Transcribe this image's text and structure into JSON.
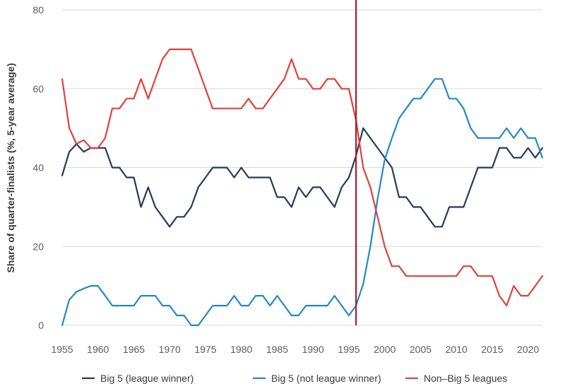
{
  "chart_data": {
    "type": "line",
    "ylabel": "Share of quarter-finalists (%, 5-year average)",
    "xlabel": "",
    "ylim": [
      0,
      80
    ],
    "xlim": [
      1955,
      2022
    ],
    "y_ticks": [
      0,
      20,
      40,
      60,
      80
    ],
    "x_ticks": [
      1955,
      1960,
      1965,
      1970,
      1975,
      1980,
      1985,
      1990,
      1995,
      2000,
      2005,
      2010,
      2015,
      2020
    ],
    "grid": "horizontal",
    "legend_position": "bottom",
    "reference_line": {
      "x": 1996,
      "color": "#b01c2e"
    },
    "x": [
      1955,
      1956,
      1957,
      1958,
      1959,
      1960,
      1961,
      1962,
      1963,
      1964,
      1965,
      1966,
      1967,
      1968,
      1969,
      1970,
      1971,
      1972,
      1973,
      1974,
      1975,
      1976,
      1977,
      1978,
      1979,
      1980,
      1981,
      1982,
      1983,
      1984,
      1985,
      1986,
      1987,
      1988,
      1989,
      1990,
      1991,
      1992,
      1993,
      1994,
      1995,
      1996,
      1997,
      1998,
      1999,
      2000,
      2001,
      2002,
      2003,
      2004,
      2005,
      2006,
      2007,
      2008,
      2009,
      2010,
      2011,
      2012,
      2013,
      2014,
      2015,
      2016,
      2017,
      2018,
      2019,
      2020,
      2021,
      2022
    ],
    "series": [
      {
        "name": "Big 5 (league winner)",
        "color": "#243a5a",
        "values": [
          38,
          44,
          46,
          44,
          45,
          45,
          45,
          40,
          40,
          37.5,
          37.5,
          30,
          35,
          30,
          27.5,
          25,
          27.5,
          27.5,
          30,
          35,
          37.5,
          40,
          40,
          40,
          37.5,
          40,
          37.5,
          37.5,
          37.5,
          37.5,
          32.5,
          32.5,
          30,
          35,
          32.5,
          35,
          35,
          32.5,
          30,
          35,
          37.5,
          43,
          50,
          47.5,
          45,
          42.5,
          40,
          32.5,
          32.5,
          30,
          30,
          27.5,
          25,
          25,
          30,
          30,
          30,
          35,
          40,
          40,
          40,
          45,
          45,
          42.5,
          42.5,
          45,
          42.5,
          45
        ]
      },
      {
        "name": "Big 5 (not league winner)",
        "color": "#1f8ac4",
        "values": [
          0,
          6.5,
          8.5,
          9.3,
          10,
          10,
          7.5,
          5,
          5,
          5,
          5,
          7.5,
          7.5,
          7.5,
          5,
          5,
          2.5,
          2.5,
          0,
          0,
          2.5,
          5,
          5,
          5,
          7.5,
          5,
          5,
          7.5,
          7.5,
          5,
          7.5,
          5,
          2.5,
          2.5,
          5,
          5,
          5,
          5,
          7.5,
          5,
          2.5,
          5,
          10.5,
          20,
          32,
          42,
          47.5,
          52.5,
          55,
          57.5,
          57.5,
          60,
          62.5,
          62.5,
          57.5,
          57.5,
          55,
          50,
          47.5,
          47.5,
          47.5,
          47.5,
          50,
          47.5,
          50,
          47.5,
          47.5,
          42.5
        ]
      },
      {
        "name": "Non–Big 5 leagues",
        "color": "#e0413a",
        "values": [
          62.5,
          50,
          46,
          47,
          45,
          45,
          47.5,
          55,
          55,
          57.5,
          57.5,
          62.5,
          57.5,
          62.5,
          67.5,
          70,
          70,
          70,
          70,
          65,
          60,
          55,
          55,
          55,
          55,
          55,
          57.5,
          55,
          55,
          57.5,
          60,
          62.5,
          67.5,
          62.5,
          62.5,
          60,
          60,
          62.5,
          62.5,
          60,
          60,
          52,
          40,
          35,
          27.5,
          20,
          15,
          15,
          12.5,
          12.5,
          12.5,
          12.5,
          12.5,
          12.5,
          12.5,
          12.5,
          15,
          15,
          12.5,
          12.5,
          12.5,
          7.5,
          5,
          10,
          7.5,
          7.5,
          10,
          12.5
        ]
      }
    ]
  }
}
